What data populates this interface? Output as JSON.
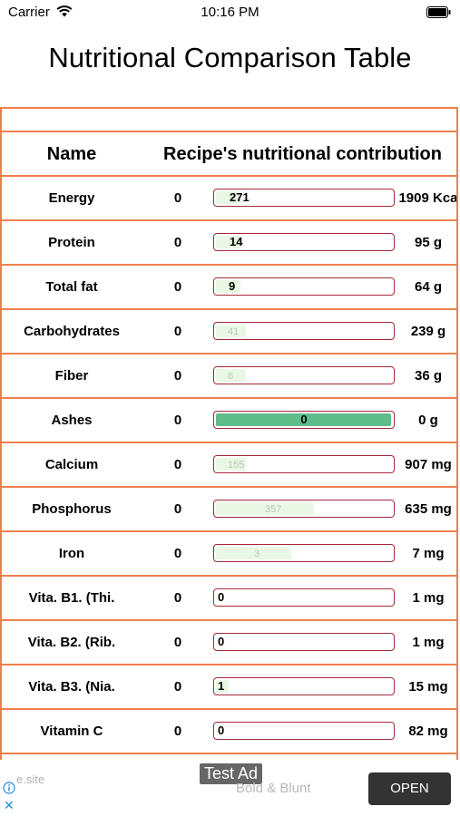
{
  "status_bar": {
    "carrier": "Carrier",
    "time": "10:16 PM"
  },
  "page": {
    "title": "Nutritional Comparison Table"
  },
  "table": {
    "headers": {
      "name": "Name",
      "contribution": "Recipe's nutritional contribution"
    },
    "rows": [
      {
        "name": "Energy",
        "current": "0",
        "bar_value": "271",
        "max": "1909 Kca",
        "fill_fraction": 0.15,
        "style": "normal"
      },
      {
        "name": "Protein",
        "current": "0",
        "bar_value": "14",
        "max": "95 g",
        "fill_fraction": 0.15,
        "style": "normal"
      },
      {
        "name": "Total fat",
        "current": "0",
        "bar_value": "9",
        "max": "64 g",
        "fill_fraction": 0.14,
        "style": "normal"
      },
      {
        "name": "Carbohydrates",
        "current": "0",
        "bar_value": "41",
        "max": "239 g",
        "fill_fraction": 0.17,
        "style": "faint"
      },
      {
        "name": "Fiber",
        "current": "0",
        "bar_value": "6",
        "max": "36 g",
        "fill_fraction": 0.17,
        "style": "faint"
      },
      {
        "name": "Ashes",
        "current": "0",
        "bar_value": "0",
        "max": "0 g",
        "fill_fraction": 1.0,
        "style": "full"
      },
      {
        "name": "Calcium",
        "current": "0",
        "bar_value": "155",
        "max": "907 mg",
        "fill_fraction": 0.17,
        "style": "faint"
      },
      {
        "name": "Phosphorus",
        "current": "0",
        "bar_value": "357",
        "max": "635 mg",
        "fill_fraction": 0.56,
        "style": "faint_center"
      },
      {
        "name": "Iron",
        "current": "0",
        "bar_value": "3",
        "max": "7 mg",
        "fill_fraction": 0.43,
        "style": "faint_center"
      },
      {
        "name": "Vita. B1. (Thi.",
        "current": "0",
        "bar_value": "0",
        "max": "1 mg",
        "fill_fraction": 0.0,
        "style": "normal"
      },
      {
        "name": "Vita. B2. (Rib.",
        "current": "0",
        "bar_value": "0",
        "max": "1 mg",
        "fill_fraction": 0.0,
        "style": "normal"
      },
      {
        "name": "Vita. B3. (Nia.",
        "current": "0",
        "bar_value": "1",
        "max": "15 mg",
        "fill_fraction": 0.07,
        "style": "normal"
      },
      {
        "name": "Vitamin C",
        "current": "0",
        "bar_value": "0",
        "max": "82 mg",
        "fill_fraction": 0.0,
        "style": "normal"
      }
    ]
  },
  "ad": {
    "site": "e.site",
    "label": "Test Ad",
    "brand": "Bold & Blunt",
    "open_label": "OPEN"
  },
  "colors": {
    "border": "#f07f4e",
    "bar_border": "#a42a38",
    "bar_fill": "#e9f8e5",
    "bar_full": "#5fbd8a"
  },
  "icons": [
    "wifi-icon",
    "battery-icon",
    "ad-info-icon",
    "ad-close-icon"
  ]
}
